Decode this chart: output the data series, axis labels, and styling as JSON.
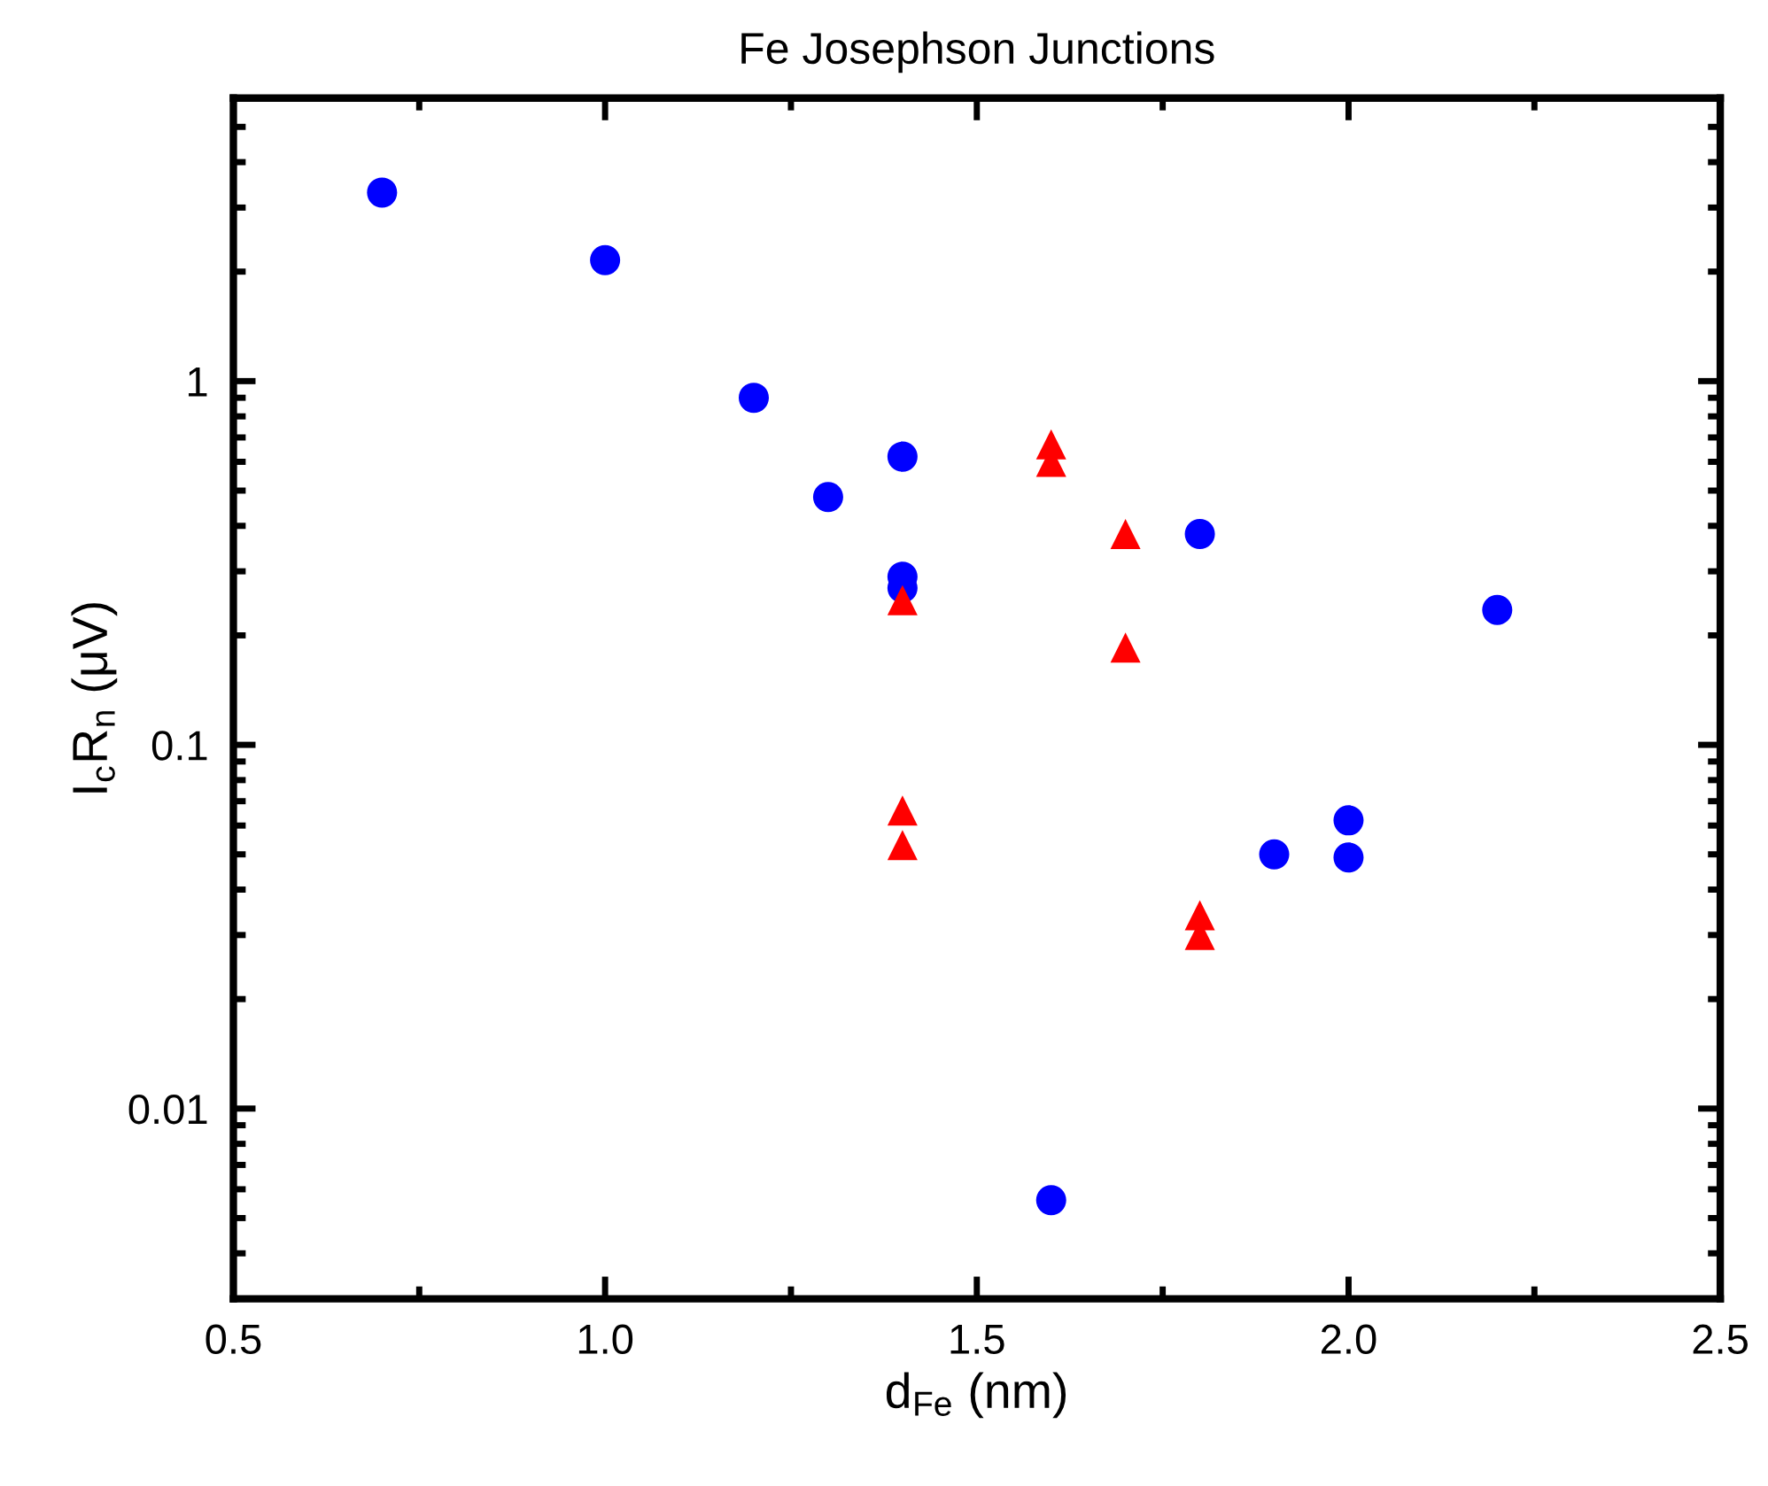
{
  "chart_data": {
    "type": "scatter",
    "title": "Fe Josephson Junctions",
    "xlabel": "d$_{Fe}$ (nm)",
    "ylabel": "I$_{c}$R$_{n}$ (μV)",
    "log": "y",
    "xlim": [
      0.5,
      2.5
    ],
    "xticks": [
      {
        "value": 0.5,
        "label": "0.5"
      },
      {
        "value": 1.0,
        "label": "1.0"
      },
      {
        "value": 1.5,
        "label": "1.5"
      },
      {
        "value": 2.0,
        "label": "2.0"
      },
      {
        "value": 2.5,
        "label": "2.5"
      }
    ],
    "ylim": [
      0.003,
      6
    ],
    "yticks": [
      {
        "value": 0.01,
        "label": "0.01"
      },
      {
        "value": 0.1,
        "label": "0.1"
      },
      {
        "value": 1,
        "label": "1"
      }
    ],
    "grid": false,
    "legend": false,
    "series": [
      {
        "color": "#0000ff",
        "marker": "circle",
        "x": [
          0.7,
          1.0,
          1.2,
          1.3,
          1.4,
          1.4,
          1.4,
          1.8,
          2.2,
          1.9,
          2.0,
          2.0,
          1.6
        ],
        "values": [
          3.3,
          2.15,
          0.9,
          0.48,
          0.62,
          0.29,
          0.27,
          0.38,
          0.235,
          0.05,
          0.062,
          0.049,
          0.0056
        ]
      },
      {
        "color": "#ff0000",
        "marker": "triangle",
        "x": [
          1.6,
          1.6,
          1.7,
          1.7,
          1.4,
          1.4,
          1.4,
          1.8,
          1.8
        ],
        "values": [
          0.67,
          0.6,
          0.38,
          0.185,
          0.25,
          0.066,
          0.053,
          0.034,
          0.03
        ]
      }
    ]
  }
}
